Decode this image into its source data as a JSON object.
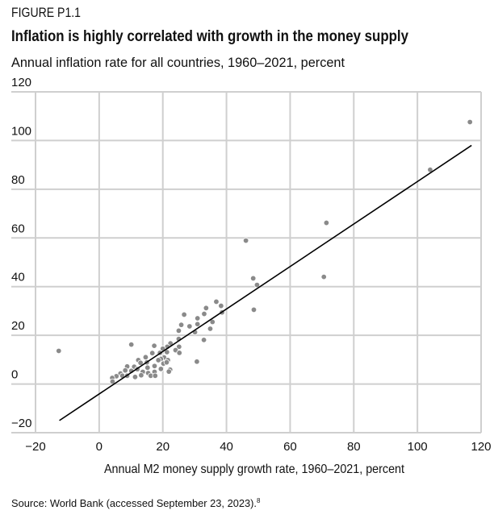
{
  "figure_label": "FIGURE P1.1",
  "chart_data": {
    "type": "scatter",
    "title": "Inflation is highly correlated with growth in the money supply",
    "subtitle": "Annual inflation rate for all countries, 1960–2021, percent",
    "xlabel": "Annual M2 money supply growth rate, 1960–2021, percent",
    "ylabel": "",
    "xlim": [
      -20,
      120
    ],
    "ylim": [
      -20,
      120
    ],
    "x_ticks": [
      -20,
      0,
      20,
      40,
      60,
      80,
      100,
      120
    ],
    "y_ticks": [
      -20,
      0,
      20,
      40,
      60,
      80,
      100,
      120
    ],
    "x_tick_labels": [
      "−20",
      "0",
      "20",
      "40",
      "60",
      "80",
      "100",
      "120"
    ],
    "y_tick_labels": [
      "−20",
      "0",
      "20",
      "40",
      "60",
      "80",
      "100",
      "120"
    ],
    "grid": true,
    "point_color": "#8a8a8a",
    "line_color": "#000000",
    "trend_line": {
      "x": [
        -12.5,
        117
      ],
      "y": [
        -15,
        98
      ]
    },
    "points": [
      [
        -12.7,
        13.6
      ],
      [
        116.5,
        107.6
      ],
      [
        104,
        88
      ],
      [
        71.4,
        66.2
      ],
      [
        70.6,
        44
      ],
      [
        46.1,
        58.9
      ],
      [
        48.4,
        43.4
      ],
      [
        49.6,
        40.7
      ],
      [
        48.6,
        30.5
      ],
      [
        30.7,
        9.2
      ],
      [
        36.8,
        33.8
      ],
      [
        38.3,
        32.1
      ],
      [
        38.6,
        29.4
      ],
      [
        33.6,
        31.2
      ],
      [
        33,
        28.8
      ],
      [
        26.7,
        28.5
      ],
      [
        30.9,
        27
      ],
      [
        25.8,
        24.3
      ],
      [
        28.4,
        23.7
      ],
      [
        30.9,
        24.6
      ],
      [
        35.6,
        25.5
      ],
      [
        34.9,
        22.7
      ],
      [
        25,
        21.9
      ],
      [
        30.1,
        21.3
      ],
      [
        25,
        18.5
      ],
      [
        32.9,
        18.1
      ],
      [
        22.4,
        16.7
      ],
      [
        25.1,
        15.3
      ],
      [
        24,
        13.9
      ],
      [
        25.2,
        12.8
      ],
      [
        21.4,
        15.3
      ],
      [
        20,
        14.5
      ],
      [
        19.1,
        12.8
      ],
      [
        10.1,
        16.2
      ],
      [
        17.3,
        15.7
      ],
      [
        16.7,
        12.7
      ],
      [
        21.3,
        13.1
      ],
      [
        20.4,
        10.9
      ],
      [
        19.4,
        10.3
      ],
      [
        21.6,
        9.8
      ],
      [
        18.6,
        9.8
      ],
      [
        14.6,
        11
      ],
      [
        12.3,
        9.8
      ],
      [
        13,
        8.7
      ],
      [
        11,
        7.1
      ],
      [
        15,
        8.9
      ],
      [
        17.4,
        7.4
      ],
      [
        15.2,
        6.7
      ],
      [
        8.8,
        7.2
      ],
      [
        8.2,
        5.6
      ],
      [
        10.1,
        5.4
      ],
      [
        12,
        6.1
      ],
      [
        13.7,
        5
      ],
      [
        15.4,
        4.5
      ],
      [
        17.4,
        5
      ],
      [
        20.2,
        8.4
      ],
      [
        21.2,
        8.9
      ],
      [
        22.3,
        5.9
      ],
      [
        21.9,
        5.1
      ],
      [
        19.4,
        6.2
      ],
      [
        6.7,
        4.3
      ],
      [
        5.4,
        3.2
      ],
      [
        4.1,
        2.5
      ],
      [
        4.2,
        1
      ],
      [
        7.3,
        3.4
      ],
      [
        8.8,
        3.4
      ],
      [
        11.3,
        2.9
      ],
      [
        13.2,
        3.6
      ],
      [
        16.2,
        3.4
      ],
      [
        17.6,
        3.4
      ]
    ]
  },
  "source": "Source: World Bank (accessed September 23, 2023).",
  "source_note": "8"
}
